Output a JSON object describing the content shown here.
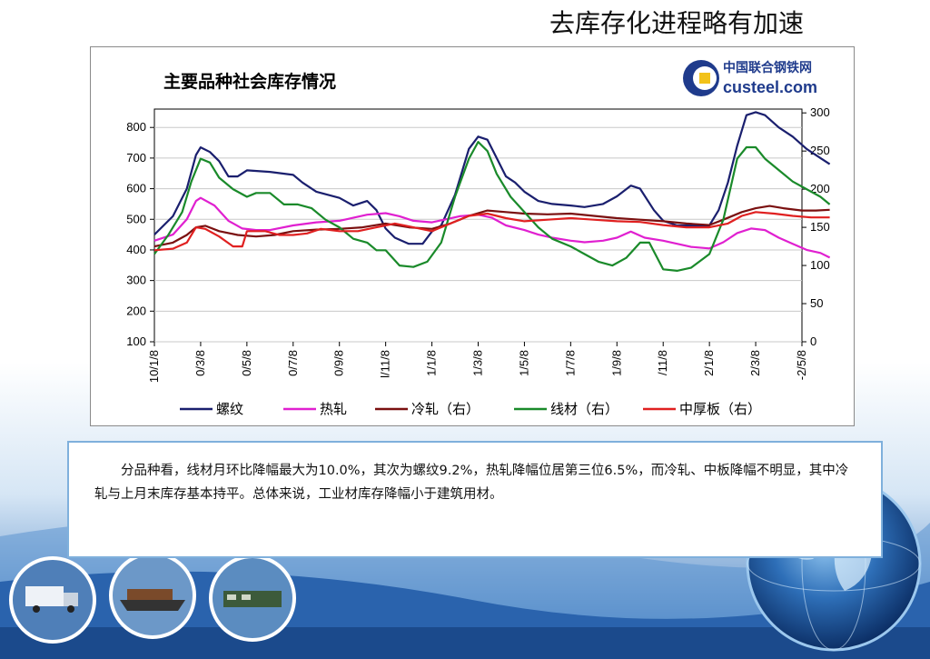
{
  "slide": {
    "title": "去库存化进程略有加速",
    "paragraph": "分品种看，线材月环比降幅最大为10.0%，其次为螺纹9.2%，热轧降幅位居第三位6.5%，而冷轧、中板降幅不明显，其中冷轧与上月末库存基本持平。总体来说，工业材库存降幅小于建筑用材。"
  },
  "logo": {
    "cn": "中国联合钢铁网",
    "en": "custeel.com"
  },
  "colors": {
    "luowen": "#1a1f6e",
    "rezha": "#e020d0",
    "lengzha": "#7a1010",
    "xiancai": "#1a8a2a",
    "zhonghouban": "#e02020",
    "background_blue": "#2a66b0"
  },
  "chart_data": {
    "type": "line",
    "title": "主要品种社会库存情况",
    "x_tick_labels": [
      "10/1/8",
      "0/3/8",
      "0/5/8",
      "0/7/8",
      "0/9/8",
      "l/11/8",
      "1/1/8",
      "1/3/8",
      "1/5/8",
      "1/7/8",
      "1/9/8",
      "/11/8",
      "2/1/8",
      "2/3/8",
      "-2/5/8"
    ],
    "y_left": {
      "ticks": [
        100,
        200,
        300,
        400,
        500,
        600,
        700,
        800
      ],
      "ylim": [
        100,
        860
      ]
    },
    "y_right": {
      "ticks": [
        0,
        50,
        100,
        150,
        200,
        250,
        300
      ],
      "ylim": [
        0,
        305
      ]
    },
    "series": [
      {
        "name": "螺纹",
        "axis": "left",
        "color_key": "luowen",
        "values": [
          [
            0,
            450
          ],
          [
            0.4,
            510
          ],
          [
            0.7,
            600
          ],
          [
            0.9,
            710
          ],
          [
            1.0,
            735
          ],
          [
            1.2,
            720
          ],
          [
            1.4,
            690
          ],
          [
            1.6,
            640
          ],
          [
            1.8,
            640
          ],
          [
            2.0,
            660
          ],
          [
            2.5,
            655
          ],
          [
            3.0,
            645
          ],
          [
            3.2,
            620
          ],
          [
            3.5,
            590
          ],
          [
            4.0,
            570
          ],
          [
            4.3,
            545
          ],
          [
            4.6,
            560
          ],
          [
            4.8,
            530
          ],
          [
            5.0,
            470
          ],
          [
            5.2,
            440
          ],
          [
            5.5,
            420
          ],
          [
            5.8,
            420
          ],
          [
            6.0,
            460
          ],
          [
            6.2,
            480
          ],
          [
            6.5,
            580
          ],
          [
            6.8,
            730
          ],
          [
            7.0,
            770
          ],
          [
            7.2,
            760
          ],
          [
            7.4,
            700
          ],
          [
            7.6,
            640
          ],
          [
            7.8,
            620
          ],
          [
            8.0,
            590
          ],
          [
            8.3,
            560
          ],
          [
            8.6,
            550
          ],
          [
            9.0,
            545
          ],
          [
            9.3,
            540
          ],
          [
            9.7,
            550
          ],
          [
            10.0,
            575
          ],
          [
            10.3,
            610
          ],
          [
            10.5,
            600
          ],
          [
            10.8,
            530
          ],
          [
            11.0,
            495
          ],
          [
            11.3,
            480
          ],
          [
            11.6,
            480
          ],
          [
            12.0,
            480
          ],
          [
            12.2,
            530
          ],
          [
            12.4,
            620
          ],
          [
            12.6,
            740
          ],
          [
            12.8,
            840
          ],
          [
            13.0,
            850
          ],
          [
            13.2,
            840
          ],
          [
            13.5,
            800
          ],
          [
            13.8,
            770
          ],
          [
            14.1,
            730
          ],
          [
            14.4,
            700
          ],
          [
            14.6,
            680
          ]
        ]
      },
      {
        "name": "热轧",
        "axis": "left",
        "color_key": "rezha",
        "values": [
          [
            0,
            430
          ],
          [
            0.4,
            450
          ],
          [
            0.7,
            500
          ],
          [
            0.9,
            560
          ],
          [
            1.0,
            570
          ],
          [
            1.3,
            545
          ],
          [
            1.6,
            495
          ],
          [
            1.9,
            470
          ],
          [
            2.2,
            465
          ],
          [
            2.5,
            465
          ],
          [
            3.0,
            480
          ],
          [
            3.5,
            490
          ],
          [
            4.0,
            495
          ],
          [
            4.3,
            505
          ],
          [
            4.6,
            515
          ],
          [
            5.0,
            520
          ],
          [
            5.3,
            510
          ],
          [
            5.6,
            495
          ],
          [
            6.0,
            490
          ],
          [
            6.3,
            500
          ],
          [
            6.6,
            510
          ],
          [
            7.0,
            515
          ],
          [
            7.3,
            505
          ],
          [
            7.6,
            480
          ],
          [
            8.0,
            465
          ],
          [
            8.3,
            450
          ],
          [
            8.6,
            440
          ],
          [
            9.0,
            430
          ],
          [
            9.3,
            425
          ],
          [
            9.7,
            430
          ],
          [
            10.0,
            440
          ],
          [
            10.3,
            460
          ],
          [
            10.6,
            440
          ],
          [
            11.0,
            430
          ],
          [
            11.3,
            420
          ],
          [
            11.6,
            410
          ],
          [
            12.0,
            405
          ],
          [
            12.3,
            425
          ],
          [
            12.6,
            455
          ],
          [
            12.9,
            470
          ],
          [
            13.2,
            465
          ],
          [
            13.5,
            440
          ],
          [
            13.8,
            420
          ],
          [
            14.1,
            400
          ],
          [
            14.4,
            390
          ],
          [
            14.6,
            375
          ]
        ]
      },
      {
        "name": "冷轧（右）",
        "axis": "right",
        "color_key": "lengzha",
        "values": [
          [
            0,
            125
          ],
          [
            0.4,
            130
          ],
          [
            0.7,
            140
          ],
          [
            0.9,
            150
          ],
          [
            1.1,
            152
          ],
          [
            1.4,
            145
          ],
          [
            1.8,
            140
          ],
          [
            2.2,
            138
          ],
          [
            2.6,
            140
          ],
          [
            3.0,
            145
          ],
          [
            3.5,
            147
          ],
          [
            4.0,
            148
          ],
          [
            4.5,
            150
          ],
          [
            5.0,
            155
          ],
          [
            5.5,
            150
          ],
          [
            6.0,
            148
          ],
          [
            6.4,
            155
          ],
          [
            6.8,
            165
          ],
          [
            7.2,
            172
          ],
          [
            7.6,
            170
          ],
          [
            8.0,
            168
          ],
          [
            8.5,
            167
          ],
          [
            9.0,
            168
          ],
          [
            9.5,
            165
          ],
          [
            10.0,
            162
          ],
          [
            10.5,
            160
          ],
          [
            11.0,
            158
          ],
          [
            11.5,
            155
          ],
          [
            12.0,
            153
          ],
          [
            12.3,
            160
          ],
          [
            12.7,
            170
          ],
          [
            13.0,
            175
          ],
          [
            13.3,
            178
          ],
          [
            13.6,
            175
          ],
          [
            14.0,
            172
          ],
          [
            14.3,
            172
          ],
          [
            14.6,
            173
          ]
        ]
      },
      {
        "name": "线材（右）",
        "axis": "right",
        "color_key": "xiancai",
        "values": [
          [
            0,
            115
          ],
          [
            0.3,
            140
          ],
          [
            0.6,
            170
          ],
          [
            0.8,
            210
          ],
          [
            1.0,
            240
          ],
          [
            1.2,
            235
          ],
          [
            1.4,
            215
          ],
          [
            1.7,
            200
          ],
          [
            2.0,
            190
          ],
          [
            2.2,
            195
          ],
          [
            2.5,
            195
          ],
          [
            2.8,
            180
          ],
          [
            3.1,
            180
          ],
          [
            3.4,
            175
          ],
          [
            3.7,
            160
          ],
          [
            4.0,
            150
          ],
          [
            4.3,
            135
          ],
          [
            4.6,
            130
          ],
          [
            4.8,
            120
          ],
          [
            5.0,
            120
          ],
          [
            5.3,
            100
          ],
          [
            5.6,
            98
          ],
          [
            5.9,
            105
          ],
          [
            6.2,
            130
          ],
          [
            6.5,
            190
          ],
          [
            6.8,
            240
          ],
          [
            7.0,
            262
          ],
          [
            7.2,
            250
          ],
          [
            7.4,
            220
          ],
          [
            7.7,
            190
          ],
          [
            8.0,
            170
          ],
          [
            8.3,
            150
          ],
          [
            8.6,
            135
          ],
          [
            9.0,
            125
          ],
          [
            9.3,
            115
          ],
          [
            9.6,
            105
          ],
          [
            9.9,
            100
          ],
          [
            10.2,
            110
          ],
          [
            10.5,
            130
          ],
          [
            10.7,
            130
          ],
          [
            11.0,
            95
          ],
          [
            11.3,
            93
          ],
          [
            11.6,
            97
          ],
          [
            12.0,
            115
          ],
          [
            12.3,
            160
          ],
          [
            12.6,
            240
          ],
          [
            12.8,
            255
          ],
          [
            13.0,
            255
          ],
          [
            13.2,
            240
          ],
          [
            13.5,
            225
          ],
          [
            13.8,
            210
          ],
          [
            14.1,
            200
          ],
          [
            14.4,
            190
          ],
          [
            14.6,
            180
          ]
        ]
      },
      {
        "name": "中厚板（右）",
        "axis": "right",
        "color_key": "zhonghouban",
        "values": [
          [
            0,
            120
          ],
          [
            0.4,
            122
          ],
          [
            0.7,
            130
          ],
          [
            0.9,
            150
          ],
          [
            1.1,
            148
          ],
          [
            1.4,
            138
          ],
          [
            1.7,
            125
          ],
          [
            1.9,
            125
          ],
          [
            2.0,
            145
          ],
          [
            2.4,
            145
          ],
          [
            2.7,
            140
          ],
          [
            3.0,
            140
          ],
          [
            3.3,
            142
          ],
          [
            3.6,
            148
          ],
          [
            4.0,
            145
          ],
          [
            4.4,
            145
          ],
          [
            4.8,
            150
          ],
          [
            5.2,
            155
          ],
          [
            5.6,
            150
          ],
          [
            6.0,
            145
          ],
          [
            6.4,
            155
          ],
          [
            6.8,
            165
          ],
          [
            7.2,
            168
          ],
          [
            7.6,
            162
          ],
          [
            8.0,
            158
          ],
          [
            8.5,
            160
          ],
          [
            9.0,
            162
          ],
          [
            9.5,
            160
          ],
          [
            10.0,
            158
          ],
          [
            10.5,
            157
          ],
          [
            11.0,
            153
          ],
          [
            11.5,
            150
          ],
          [
            12.0,
            150
          ],
          [
            12.4,
            155
          ],
          [
            12.7,
            165
          ],
          [
            13.0,
            170
          ],
          [
            13.4,
            168
          ],
          [
            13.8,
            165
          ],
          [
            14.2,
            163
          ],
          [
            14.6,
            163
          ]
        ]
      }
    ],
    "legend": "bottom",
    "grid": true
  }
}
